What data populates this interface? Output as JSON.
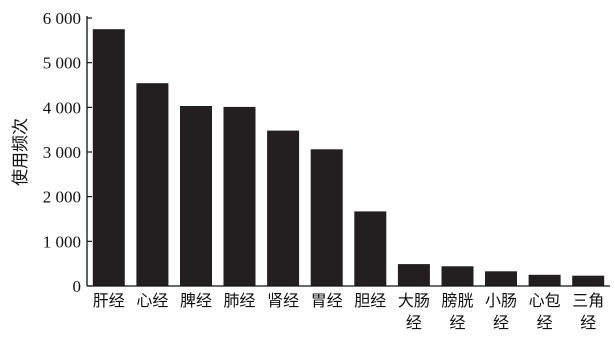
{
  "chart_data": {
    "type": "bar",
    "title": "",
    "xlabel": "",
    "ylabel": "使用频次",
    "ylim": [
      0,
      6000
    ],
    "yticks": [
      0,
      1000,
      2000,
      3000,
      4000,
      5000,
      6000
    ],
    "ytick_labels": [
      "0",
      "1 000",
      "2 000",
      "3 000",
      "4 000",
      "5 000",
      "6 000"
    ],
    "grid": false,
    "legend": "none",
    "bar_color": "#231f20",
    "categories": [
      [
        "肝经"
      ],
      [
        "心经"
      ],
      [
        "脾经"
      ],
      [
        "肺经"
      ],
      [
        "肾经"
      ],
      [
        "胃经"
      ],
      [
        "胆经"
      ],
      [
        "大肠",
        "经"
      ],
      [
        "膀胱",
        "经"
      ],
      [
        "小肠",
        "经"
      ],
      [
        "心包",
        "经"
      ],
      [
        "三角",
        "经"
      ]
    ],
    "values": [
      5750,
      4540,
      4030,
      4010,
      3480,
      3060,
      1670,
      490,
      440,
      330,
      250,
      230
    ]
  }
}
